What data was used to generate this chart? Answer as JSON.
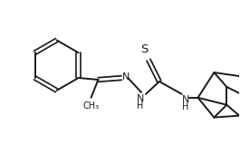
{
  "background_color": "#ffffff",
  "line_color": "#1a1a1a",
  "line_width": 1.4,
  "font_size": 7.5,
  "fig_width": 2.65,
  "fig_height": 1.7,
  "dpi": 100,
  "xlim": [
    0,
    265
  ],
  "ylim": [
    0,
    170
  ]
}
